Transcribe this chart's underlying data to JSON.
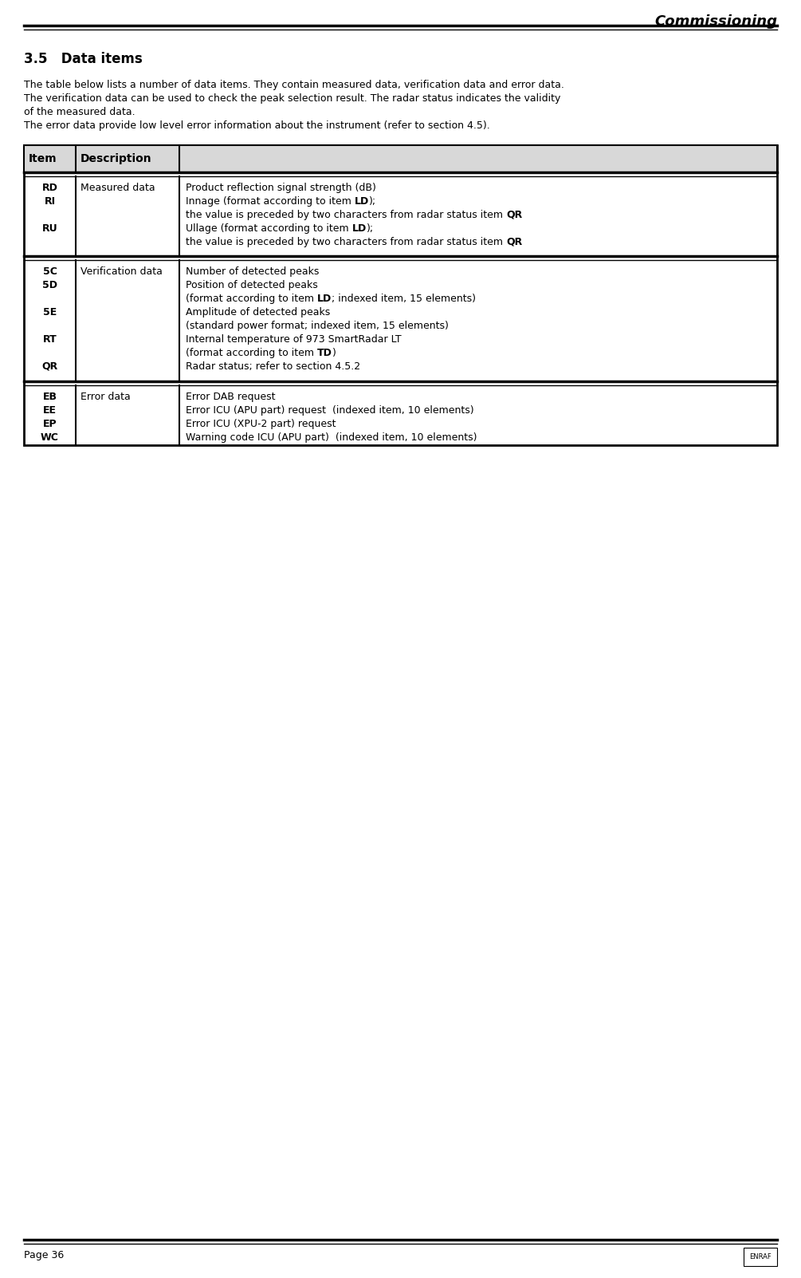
{
  "title_header": "Commissioning",
  "section": "3.5   Data items",
  "intro_lines": [
    "The table below lists a number of data items. They contain measured data, verification data and error data.",
    "The verification data can be used to check the peak selection result. The radar status indicates the validity",
    "of the measured data.",
    "The error data provide low level error information about the instrument (refer to section 4.5)."
  ],
  "footer_left": "Page 36",
  "bg_color": "#ffffff",
  "header_bg": "#d8d8d8",
  "measured_items": [
    "RD",
    "RI",
    "",
    "RU",
    ""
  ],
  "measured_category": "Measured data",
  "measured_desc": [
    [
      [
        "Product reflection signal strength (dB)",
        false
      ]
    ],
    [
      [
        "Innage (format according to item ",
        false
      ],
      [
        "LD",
        true
      ],
      [
        ");",
        false
      ]
    ],
    [
      [
        "the value is preceded by two characters from radar status item ",
        false
      ],
      [
        "QR",
        true
      ]
    ],
    [
      [
        "Ullage (format according to item ",
        false
      ],
      [
        "LD",
        true
      ],
      [
        ");",
        false
      ]
    ],
    [
      [
        "the value is preceded by two characters from radar status item ",
        false
      ],
      [
        "QR",
        true
      ]
    ]
  ],
  "verif_items": [
    "5C",
    "5D",
    "",
    "5E",
    "",
    "RT",
    "",
    "QR"
  ],
  "verif_category": "Verification data",
  "verif_desc": [
    [
      [
        "Number of detected peaks",
        false
      ]
    ],
    [
      [
        "Position of detected peaks",
        false
      ]
    ],
    [
      [
        "(format according to item ",
        false
      ],
      [
        "LD",
        true
      ],
      [
        "; indexed item, 15 elements)",
        false
      ]
    ],
    [
      [
        "Amplitude of detected peaks",
        false
      ]
    ],
    [
      [
        "(standard power format; indexed item, 15 elements)",
        false
      ]
    ],
    [
      [
        "Internal temperature of 973 SmartRadar LT",
        false
      ]
    ],
    [
      [
        "(format according to item ",
        false
      ],
      [
        "TD",
        true
      ],
      [
        ")",
        false
      ]
    ],
    [
      [
        "Radar status; refer to section 4.5.2",
        false
      ]
    ]
  ],
  "error_items": [
    "EB",
    "EE",
    "EP",
    "WC"
  ],
  "error_category": "Error data",
  "error_desc": [
    [
      [
        "Error DAB request",
        false
      ]
    ],
    [
      [
        "Error ICU (APU part) request  (indexed item, 10 elements)",
        false
      ]
    ],
    [
      [
        "Error ICU (XPU-2 part) request",
        false
      ]
    ],
    [
      [
        "Warning code ICU (APU part)  (indexed item, 10 elements)",
        false
      ]
    ]
  ]
}
